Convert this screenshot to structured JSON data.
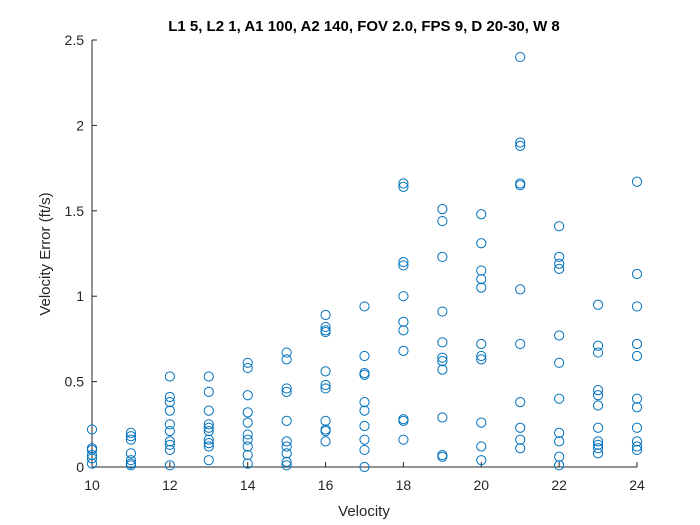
{
  "chart_data": {
    "type": "scatter",
    "title": "L1 5, L2 1, A1 100, A2 140, FOV 2.0, FPS 9, D 20-30, W 8",
    "xlabel": "Velocity",
    "ylabel": "Velocity Error (ft/s)",
    "xlim": [
      10,
      24
    ],
    "ylim": [
      0,
      2.5
    ],
    "xticks": [
      10,
      12,
      14,
      16,
      18,
      20,
      22,
      24
    ],
    "yticks": [
      0,
      0.5,
      1,
      1.5,
      2,
      2.5
    ],
    "xtick_labels": [
      "10",
      "12",
      "14",
      "16",
      "18",
      "20",
      "22",
      "24"
    ],
    "ytick_labels": [
      "0",
      "0.5",
      "1",
      "1.5",
      "2",
      "2.5"
    ],
    "grid": false,
    "marker": "circle-open",
    "color": "#0072BD",
    "series": [
      {
        "points": [
          [
            10,
            0.22
          ],
          [
            10,
            0.11
          ],
          [
            10,
            0.1
          ],
          [
            10,
            0.07
          ],
          [
            10,
            0.05
          ],
          [
            10,
            0.02
          ],
          [
            11,
            0.2
          ],
          [
            11,
            0.18
          ],
          [
            11,
            0.16
          ],
          [
            11,
            0.08
          ],
          [
            11,
            0.04
          ],
          [
            11,
            0.02
          ],
          [
            11,
            0.01
          ],
          [
            12,
            0.53
          ],
          [
            12,
            0.41
          ],
          [
            12,
            0.38
          ],
          [
            12,
            0.33
          ],
          [
            12,
            0.25
          ],
          [
            12,
            0.21
          ],
          [
            12,
            0.15
          ],
          [
            12,
            0.13
          ],
          [
            12,
            0.1
          ],
          [
            12,
            0.01
          ],
          [
            13,
            0.53
          ],
          [
            13,
            0.44
          ],
          [
            13,
            0.33
          ],
          [
            13,
            0.25
          ],
          [
            13,
            0.23
          ],
          [
            13,
            0.21
          ],
          [
            13,
            0.16
          ],
          [
            13,
            0.14
          ],
          [
            13,
            0.12
          ],
          [
            13,
            0.04
          ],
          [
            14,
            0.61
          ],
          [
            14,
            0.58
          ],
          [
            14,
            0.42
          ],
          [
            14,
            0.32
          ],
          [
            14,
            0.26
          ],
          [
            14,
            0.19
          ],
          [
            14,
            0.16
          ],
          [
            14,
            0.12
          ],
          [
            14,
            0.07
          ],
          [
            14,
            0.02
          ],
          [
            15,
            0.67
          ],
          [
            15,
            0.63
          ],
          [
            15,
            0.46
          ],
          [
            15,
            0.44
          ],
          [
            15,
            0.27
          ],
          [
            15,
            0.15
          ],
          [
            15,
            0.12
          ],
          [
            15,
            0.08
          ],
          [
            15,
            0.03
          ],
          [
            15,
            0.01
          ],
          [
            16,
            0.89
          ],
          [
            16,
            0.82
          ],
          [
            16,
            0.8
          ],
          [
            16,
            0.79
          ],
          [
            16,
            0.56
          ],
          [
            16,
            0.48
          ],
          [
            16,
            0.46
          ],
          [
            16,
            0.27
          ],
          [
            16,
            0.22
          ],
          [
            16,
            0.21
          ],
          [
            16,
            0.15
          ],
          [
            17,
            0.94
          ],
          [
            17,
            0.65
          ],
          [
            17,
            0.55
          ],
          [
            17,
            0.54
          ],
          [
            17,
            0.38
          ],
          [
            17,
            0.33
          ],
          [
            17,
            0.24
          ],
          [
            17,
            0.16
          ],
          [
            17,
            0.1
          ],
          [
            17,
            0.0
          ],
          [
            18,
            1.66
          ],
          [
            18,
            1.64
          ],
          [
            18,
            1.2
          ],
          [
            18,
            1.18
          ],
          [
            18,
            1.0
          ],
          [
            18,
            0.85
          ],
          [
            18,
            0.8
          ],
          [
            18,
            0.68
          ],
          [
            18,
            0.28
          ],
          [
            18,
            0.27
          ],
          [
            18,
            0.16
          ],
          [
            19,
            1.51
          ],
          [
            19,
            1.44
          ],
          [
            19,
            1.23
          ],
          [
            19,
            0.91
          ],
          [
            19,
            0.73
          ],
          [
            19,
            0.64
          ],
          [
            19,
            0.62
          ],
          [
            19,
            0.57
          ],
          [
            19,
            0.29
          ],
          [
            19,
            0.07
          ],
          [
            19,
            0.06
          ],
          [
            20,
            1.48
          ],
          [
            20,
            1.31
          ],
          [
            20,
            1.15
          ],
          [
            20,
            1.1
          ],
          [
            20,
            1.05
          ],
          [
            20,
            0.72
          ],
          [
            20,
            0.65
          ],
          [
            20,
            0.63
          ],
          [
            20,
            0.26
          ],
          [
            20,
            0.12
          ],
          [
            20,
            0.04
          ],
          [
            21,
            2.4
          ],
          [
            21,
            1.9
          ],
          [
            21,
            1.88
          ],
          [
            21,
            1.66
          ],
          [
            21,
            1.65
          ],
          [
            21,
            1.04
          ],
          [
            21,
            0.72
          ],
          [
            21,
            0.38
          ],
          [
            21,
            0.23
          ],
          [
            21,
            0.16
          ],
          [
            21,
            0.11
          ],
          [
            22,
            1.41
          ],
          [
            22,
            1.23
          ],
          [
            22,
            1.19
          ],
          [
            22,
            1.16
          ],
          [
            22,
            0.77
          ],
          [
            22,
            0.61
          ],
          [
            22,
            0.4
          ],
          [
            22,
            0.2
          ],
          [
            22,
            0.15
          ],
          [
            22,
            0.06
          ],
          [
            22,
            0.01
          ],
          [
            23,
            0.95
          ],
          [
            23,
            0.71
          ],
          [
            23,
            0.67
          ],
          [
            23,
            0.45
          ],
          [
            23,
            0.42
          ],
          [
            23,
            0.36
          ],
          [
            23,
            0.23
          ],
          [
            23,
            0.15
          ],
          [
            23,
            0.13
          ],
          [
            23,
            0.11
          ],
          [
            23,
            0.08
          ],
          [
            24,
            1.67
          ],
          [
            24,
            1.13
          ],
          [
            24,
            0.94
          ],
          [
            24,
            0.72
          ],
          [
            24,
            0.65
          ],
          [
            24,
            0.4
          ],
          [
            24,
            0.35
          ],
          [
            24,
            0.23
          ],
          [
            24,
            0.15
          ],
          [
            24,
            0.12
          ],
          [
            24,
            0.1
          ]
        ]
      }
    ]
  }
}
